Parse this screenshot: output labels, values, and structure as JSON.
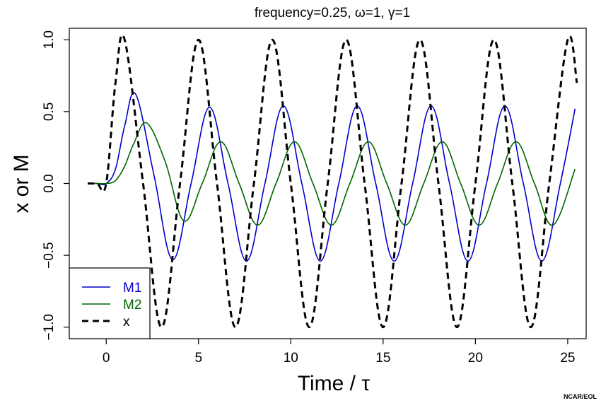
{
  "chart_data": {
    "type": "line",
    "title": "frequency=0.25, ω=1, γ=1",
    "xlabel": "Time / τ",
    "ylabel": "x or M",
    "xlim": [
      -2,
      26
    ],
    "ylim": [
      -1.08,
      1.08
    ],
    "xticks": [
      0,
      5,
      10,
      15,
      20,
      25
    ],
    "yticks": [
      -1.0,
      -0.5,
      0.0,
      0.5,
      1.0
    ],
    "ytick_labels": [
      "−1.0",
      "−0.5",
      "0.0",
      "0.5",
      "1.0"
    ],
    "legend_position": "bottom-left",
    "series": [
      {
        "name": "M1",
        "color": "#0000cc",
        "style": "solid",
        "x": [
          -1.0,
          -0.5,
          0.0,
          0.5,
          1.0,
          1.6,
          2.6,
          3.6,
          4.6,
          5.6,
          6.6,
          7.6,
          8.6,
          9.6,
          10.6,
          11.6,
          12.6,
          13.6,
          14.6,
          15.6,
          16.6,
          17.6,
          18.6,
          19.6,
          20.6,
          21.6,
          22.6,
          23.6,
          24.6,
          25.4
        ],
        "y": [
          0.0,
          0.0,
          0.0,
          0.1,
          0.4,
          0.62,
          0.05,
          -0.53,
          0.0,
          0.53,
          0.0,
          -0.54,
          0.0,
          0.54,
          0.0,
          -0.54,
          0.0,
          0.54,
          0.0,
          -0.54,
          0.0,
          0.54,
          0.0,
          -0.54,
          0.0,
          0.54,
          0.0,
          -0.54,
          0.0,
          0.52
        ]
      },
      {
        "name": "M2",
        "color": "#006600",
        "style": "solid",
        "x": [
          -1.0,
          -0.5,
          0.0,
          0.5,
          1.0,
          1.5,
          2.2,
          3.2,
          4.2,
          5.2,
          6.2,
          7.2,
          8.2,
          9.2,
          10.2,
          11.2,
          12.2,
          13.2,
          14.2,
          15.2,
          16.2,
          17.2,
          18.2,
          19.2,
          20.2,
          21.2,
          22.2,
          23.2,
          24.2,
          25.4
        ],
        "y": [
          0.0,
          0.0,
          0.0,
          0.02,
          0.12,
          0.28,
          0.42,
          0.15,
          -0.26,
          0.0,
          0.29,
          0.0,
          -0.29,
          0.0,
          0.29,
          0.0,
          -0.29,
          0.0,
          0.29,
          0.0,
          -0.29,
          0.0,
          0.29,
          0.0,
          -0.29,
          0.0,
          0.29,
          0.0,
          -0.29,
          0.1
        ]
      },
      {
        "name": "x",
        "color": "#000000",
        "style": "dashed",
        "x": [
          -1.0,
          -0.5,
          0.0,
          0.5,
          1.0,
          2.0,
          3.0,
          4.0,
          5.0,
          6.0,
          7.0,
          8.0,
          9.0,
          10.0,
          11.0,
          12.0,
          13.0,
          14.0,
          15.0,
          16.0,
          17.0,
          18.0,
          19.0,
          20.0,
          21.0,
          22.0,
          23.0,
          24.0,
          25.0,
          25.5
        ],
        "y": [
          0.0,
          0.0,
          0.0,
          0.7,
          1.0,
          0.0,
          -1.0,
          0.0,
          1.0,
          0.0,
          -1.0,
          0.0,
          1.0,
          0.0,
          -1.0,
          0.0,
          1.0,
          0.0,
          -1.0,
          0.0,
          1.0,
          0.0,
          -1.0,
          0.0,
          1.0,
          0.0,
          -1.0,
          0.0,
          1.0,
          0.7
        ]
      }
    ]
  },
  "credit": "NCAR/EOL"
}
